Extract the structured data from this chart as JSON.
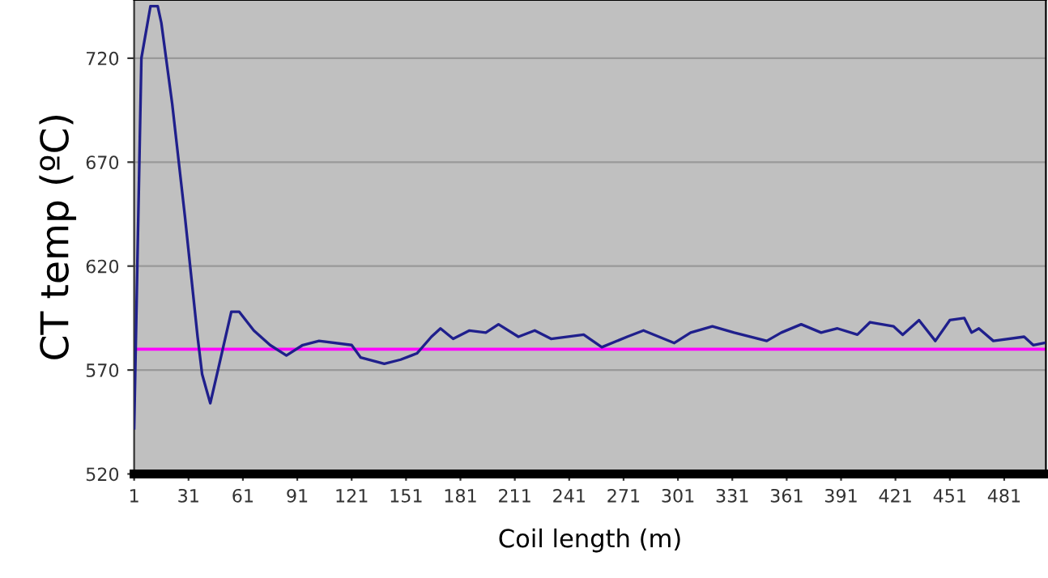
{
  "chart_data": {
    "type": "line",
    "xlabel": "Coil length (m)",
    "ylabel": "CT temp (ºC)",
    "xlim": [
      1,
      504
    ],
    "ylim": [
      520,
      748
    ],
    "xticks": [
      1,
      31,
      61,
      91,
      121,
      151,
      181,
      211,
      241,
      271,
      301,
      331,
      361,
      391,
      421,
      451,
      481
    ],
    "yticks": [
      520,
      570,
      620,
      670,
      720
    ],
    "grid": "y",
    "marker": "none",
    "line_style": "solid",
    "series": [
      {
        "color": "#1f1f8c",
        "x": [
          1,
          5,
          10,
          14,
          16,
          22,
          29,
          36,
          38.5,
          43,
          47.5,
          54.6,
          59,
          67,
          76,
          85,
          94,
          103,
          121,
          126,
          139,
          148,
          157,
          165,
          170,
          177,
          186,
          195,
          202,
          213,
          222,
          231,
          249,
          259,
          273,
          282,
          299,
          308,
          320,
          332,
          350,
          358,
          369,
          380,
          389,
          400,
          407,
          420,
          425,
          434,
          443,
          451,
          459,
          463,
          467,
          475,
          492,
          497,
          503
        ],
        "values": [
          542,
          720,
          745,
          745,
          737,
          698,
          644,
          586,
          568,
          554,
          571,
          598,
          598,
          589,
          582,
          577,
          582,
          584,
          582,
          576,
          573,
          575,
          578,
          586,
          590,
          585,
          589,
          588,
          592,
          586,
          589,
          585,
          587,
          581,
          586,
          589,
          583,
          588,
          591,
          588,
          584,
          588,
          592,
          588,
          590,
          587,
          593,
          591,
          587,
          594,
          584,
          594,
          595,
          588,
          590,
          584,
          586,
          582,
          583
        ]
      }
    ],
    "ref_lines": [
      {
        "axis": "y",
        "value": 580,
        "color": "#ff00ff",
        "line_style": "solid"
      }
    ]
  }
}
